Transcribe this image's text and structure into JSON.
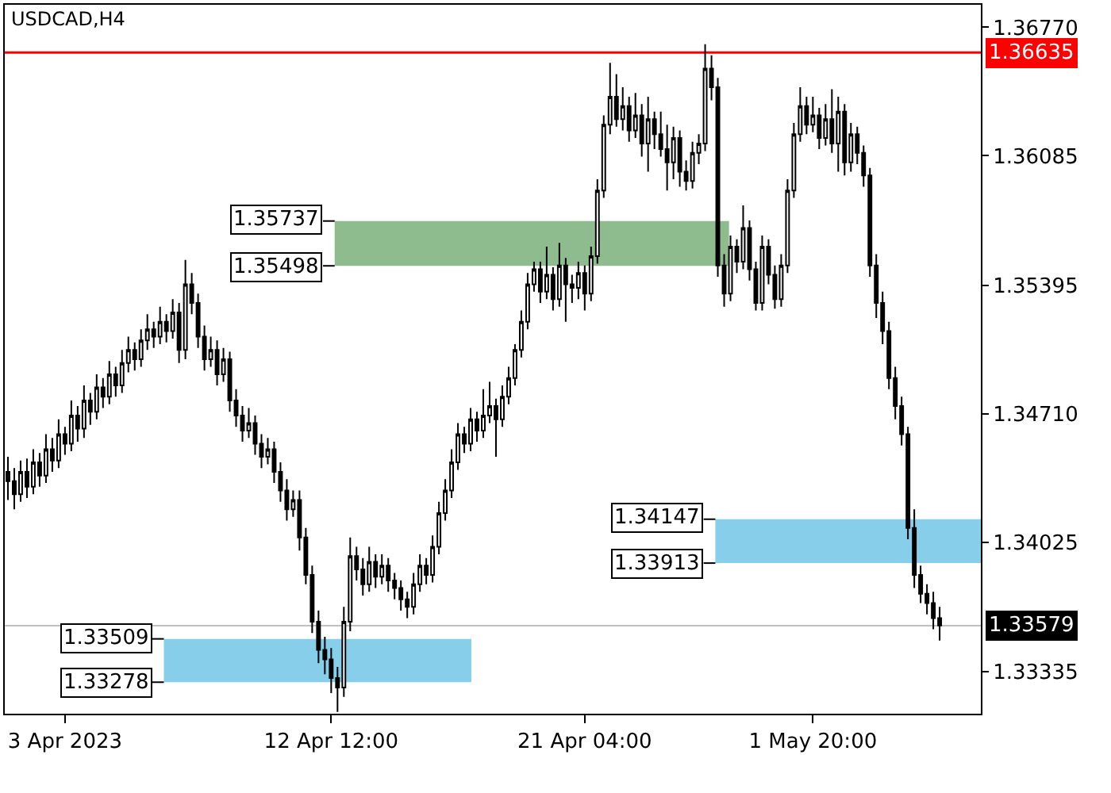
{
  "chart_data": {
    "type": "candlestick",
    "title": "USDCAD,H4",
    "color": "#000000",
    "categories": [
      null,
      null,
      null,
      null,
      null,
      null,
      null,
      null,
      null,
      "3 Apr 2023",
      null,
      null,
      null,
      null,
      null,
      null,
      null,
      null,
      null,
      null,
      null,
      null,
      null,
      null,
      null,
      null,
      null,
      null,
      null,
      null,
      null,
      null,
      null,
      null,
      null,
      null,
      null,
      null,
      null,
      null,
      null,
      null,
      null,
      null,
      null,
      null,
      null,
      null,
      null,
      null,
      null,
      "12 Apr 12:00",
      null,
      null,
      null,
      null,
      null,
      null,
      null,
      null,
      null,
      null,
      null,
      null,
      null,
      null,
      null,
      null,
      null,
      null,
      null,
      null,
      null,
      null,
      null,
      null,
      null,
      null,
      null,
      null,
      null,
      null,
      null,
      null,
      null,
      null,
      null,
      null,
      null,
      null,
      null,
      "21 Apr 04:00",
      null,
      null,
      null,
      null,
      null,
      null,
      null,
      null,
      null,
      null,
      null,
      null,
      null,
      null,
      null,
      null,
      null,
      null,
      null,
      null,
      null,
      null,
      null,
      null,
      null,
      null,
      null,
      null,
      null,
      null,
      null,
      null,
      null,
      null,
      null,
      "1 May 20:00",
      null,
      null,
      null,
      null,
      null,
      null,
      null,
      null,
      null,
      null,
      null,
      null,
      null,
      null,
      null,
      null,
      null,
      null,
      null,
      null
    ],
    "annotations": [
      "1.33509",
      "1.33278",
      "1.35737",
      "1.35498",
      "1.34147",
      "1.33913"
    ],
    "ohlc": [
      [
        1.344,
        1.3448,
        1.3425,
        1.3435
      ],
      [
        1.3435,
        1.3442,
        1.342,
        1.3428
      ],
      [
        1.3428,
        1.3446,
        1.3424,
        1.344
      ],
      [
        1.344,
        1.3447,
        1.3426,
        1.3432
      ],
      [
        1.3432,
        1.3452,
        1.3428,
        1.3445
      ],
      [
        1.3445,
        1.345,
        1.3432,
        1.3438
      ],
      [
        1.3438,
        1.346,
        1.3434,
        1.3452
      ],
      [
        1.3452,
        1.3458,
        1.344,
        1.3446
      ],
      [
        1.3446,
        1.3468,
        1.3442,
        1.346
      ],
      [
        1.346,
        1.3464,
        1.3449,
        1.3455
      ],
      [
        1.3455,
        1.3478,
        1.3451,
        1.347
      ],
      [
        1.347,
        1.3475,
        1.3456,
        1.3463
      ],
      [
        1.3463,
        1.3486,
        1.3458,
        1.3478
      ],
      [
        1.3478,
        1.3482,
        1.3465,
        1.3472
      ],
      [
        1.3472,
        1.3492,
        1.3468,
        1.3485
      ],
      [
        1.3485,
        1.349,
        1.3474,
        1.348
      ],
      [
        1.348,
        1.3499,
        1.3476,
        1.3492
      ],
      [
        1.3492,
        1.3496,
        1.348,
        1.3486
      ],
      [
        1.3486,
        1.3505,
        1.3482,
        1.3498
      ],
      [
        1.3498,
        1.3512,
        1.3493,
        1.3505
      ],
      [
        1.3505,
        1.3509,
        1.3494,
        1.35
      ],
      [
        1.35,
        1.3516,
        1.3496,
        1.351
      ],
      [
        1.351,
        1.3524,
        1.3505,
        1.3516
      ],
      [
        1.3516,
        1.352,
        1.3506,
        1.3512
      ],
      [
        1.3512,
        1.3528,
        1.3508,
        1.352
      ],
      [
        1.352,
        1.3524,
        1.3509,
        1.3515
      ],
      [
        1.3515,
        1.3532,
        1.3511,
        1.3525
      ],
      [
        1.3525,
        1.353,
        1.3498,
        1.3505
      ],
      [
        1.3505,
        1.3553,
        1.35,
        1.354
      ],
      [
        1.354,
        1.3546,
        1.3524,
        1.353
      ],
      [
        1.353,
        1.3535,
        1.3506,
        1.3512
      ],
      [
        1.3512,
        1.3518,
        1.3494,
        1.35
      ],
      [
        1.35,
        1.3512,
        1.3496,
        1.3505
      ],
      [
        1.3505,
        1.351,
        1.3486,
        1.3492
      ],
      [
        1.3492,
        1.3506,
        1.3488,
        1.35
      ],
      [
        1.35,
        1.3504,
        1.3472,
        1.3478
      ],
      [
        1.3478,
        1.3484,
        1.3464,
        1.347
      ],
      [
        1.347,
        1.3475,
        1.3456,
        1.3462
      ],
      [
        1.3462,
        1.3474,
        1.3458,
        1.3466
      ],
      [
        1.3466,
        1.347,
        1.3449,
        1.3455
      ],
      [
        1.3455,
        1.346,
        1.3442,
        1.3448
      ],
      [
        1.3448,
        1.3458,
        1.3444,
        1.3452
      ],
      [
        1.3452,
        1.3456,
        1.3434,
        1.344
      ],
      [
        1.344,
        1.3445,
        1.3424,
        1.343
      ],
      [
        1.343,
        1.3436,
        1.3414,
        1.342
      ],
      [
        1.342,
        1.343,
        1.3416,
        1.3425
      ],
      [
        1.3425,
        1.343,
        1.3398,
        1.3405
      ],
      [
        1.3405,
        1.341,
        1.338,
        1.3385
      ],
      [
        1.3385,
        1.339,
        1.3354,
        1.336
      ],
      [
        1.336,
        1.3366,
        1.3338,
        1.3345
      ],
      [
        1.3345,
        1.3352,
        1.3332,
        1.334
      ],
      [
        1.334,
        1.3346,
        1.3322,
        1.333
      ],
      [
        1.333,
        1.3336,
        1.3312,
        1.3325
      ],
      [
        1.3325,
        1.3368,
        1.332,
        1.336
      ],
      [
        1.336,
        1.3405,
        1.3355,
        1.3395
      ],
      [
        1.3395,
        1.34,
        1.3382,
        1.3388
      ],
      [
        1.3388,
        1.3394,
        1.3374,
        1.338
      ],
      [
        1.338,
        1.34,
        1.3376,
        1.3392
      ],
      [
        1.3392,
        1.3396,
        1.3378,
        1.3384
      ],
      [
        1.3384,
        1.3396,
        1.338,
        1.339
      ],
      [
        1.339,
        1.3394,
        1.3376,
        1.3382
      ],
      [
        1.3382,
        1.3386,
        1.3372,
        1.3378
      ],
      [
        1.3378,
        1.3382,
        1.3366,
        1.3372
      ],
      [
        1.3372,
        1.3376,
        1.3362,
        1.3368
      ],
      [
        1.3368,
        1.3386,
        1.3364,
        1.338
      ],
      [
        1.338,
        1.3396,
        1.3376,
        1.339
      ],
      [
        1.339,
        1.3394,
        1.338,
        1.3385
      ],
      [
        1.3385,
        1.3406,
        1.3381,
        1.34
      ],
      [
        1.34,
        1.3424,
        1.3396,
        1.3418
      ],
      [
        1.3418,
        1.3436,
        1.3414,
        1.343
      ],
      [
        1.343,
        1.3452,
        1.3426,
        1.3445
      ],
      [
        1.3445,
        1.3466,
        1.3441,
        1.346
      ],
      [
        1.346,
        1.3464,
        1.345,
        1.3455
      ],
      [
        1.3455,
        1.3474,
        1.3451,
        1.3468
      ],
      [
        1.3468,
        1.3472,
        1.3456,
        1.3462
      ],
      [
        1.3462,
        1.3484,
        1.3458,
        1.347
      ],
      [
        1.347,
        1.3488,
        1.3466,
        1.3475
      ],
      [
        1.3475,
        1.3479,
        1.3448,
        1.3468
      ],
      [
        1.3468,
        1.3486,
        1.3464,
        1.348
      ],
      [
        1.348,
        1.3496,
        1.3476,
        1.349
      ],
      [
        1.349,
        1.3508,
        1.3486,
        1.3505
      ],
      [
        1.3505,
        1.3526,
        1.3501,
        1.352
      ],
      [
        1.352,
        1.3546,
        1.3516,
        1.354
      ],
      [
        1.354,
        1.3552,
        1.3536,
        1.3548
      ],
      [
        1.3548,
        1.3552,
        1.353,
        1.3536
      ],
      [
        1.3536,
        1.356,
        1.3532,
        1.3545
      ],
      [
        1.3545,
        1.3549,
        1.3526,
        1.3532
      ],
      [
        1.3532,
        1.3562,
        1.3528,
        1.355
      ],
      [
        1.355,
        1.3554,
        1.352,
        1.354
      ],
      [
        1.354,
        1.3545,
        1.353,
        1.3538
      ],
      [
        1.3538,
        1.3552,
        1.3532,
        1.3546
      ],
      [
        1.3546,
        1.355,
        1.3526,
        1.3535
      ],
      [
        1.3535,
        1.356,
        1.3531,
        1.3555
      ],
      [
        1.3555,
        1.3596,
        1.3551,
        1.359
      ],
      [
        1.359,
        1.363,
        1.3586,
        1.3625
      ],
      [
        1.3625,
        1.3658,
        1.362,
        1.364
      ],
      [
        1.364,
        1.3652,
        1.3624,
        1.3628
      ],
      [
        1.3628,
        1.3645,
        1.3622,
        1.3635
      ],
      [
        1.3635,
        1.364,
        1.3616,
        1.3622
      ],
      [
        1.3622,
        1.3642,
        1.3618,
        1.363
      ],
      [
        1.363,
        1.3636,
        1.3608,
        1.3615
      ],
      [
        1.3615,
        1.364,
        1.36,
        1.3628
      ],
      [
        1.3628,
        1.3632,
        1.3612,
        1.362
      ],
      [
        1.362,
        1.3632,
        1.3608,
        1.3612
      ],
      [
        1.3612,
        1.3625,
        1.359,
        1.3605
      ],
      [
        1.3605,
        1.3624,
        1.3596,
        1.3618
      ],
      [
        1.3618,
        1.3622,
        1.3592,
        1.36
      ],
      [
        1.36,
        1.3606,
        1.359,
        1.3595
      ],
      [
        1.3595,
        1.3616,
        1.3591,
        1.361
      ],
      [
        1.361,
        1.362,
        1.3604,
        1.3615
      ],
      [
        1.3615,
        1.3668,
        1.3611,
        1.3655
      ],
      [
        1.3655,
        1.3662,
        1.3638,
        1.3645
      ],
      [
        1.3645,
        1.365,
        1.3544,
        1.355
      ],
      [
        1.355,
        1.3556,
        1.3528,
        1.3535
      ],
      [
        1.3535,
        1.3566,
        1.3531,
        1.356
      ],
      [
        1.356,
        1.3564,
        1.3546,
        1.3552
      ],
      [
        1.3552,
        1.3582,
        1.3548,
        1.357
      ],
      [
        1.357,
        1.3574,
        1.3542,
        1.3548
      ],
      [
        1.3548,
        1.3552,
        1.3526,
        1.353
      ],
      [
        1.353,
        1.3566,
        1.3526,
        1.356
      ],
      [
        1.356,
        1.3564,
        1.354,
        1.3545
      ],
      [
        1.3545,
        1.355,
        1.3527,
        1.3532
      ],
      [
        1.3532,
        1.3556,
        1.3528,
        1.355
      ],
      [
        1.355,
        1.3596,
        1.3546,
        1.359
      ],
      [
        1.359,
        1.3626,
        1.3586,
        1.362
      ],
      [
        1.362,
        1.3645,
        1.3616,
        1.3635
      ],
      [
        1.3635,
        1.364,
        1.362,
        1.3625
      ],
      [
        1.3625,
        1.364,
        1.3621,
        1.363
      ],
      [
        1.363,
        1.3634,
        1.3612,
        1.3618
      ],
      [
        1.3618,
        1.3636,
        1.3614,
        1.3628
      ],
      [
        1.3628,
        1.3644,
        1.361,
        1.3615
      ],
      [
        1.3615,
        1.364,
        1.36,
        1.3632
      ],
      [
        1.3632,
        1.3636,
        1.3598,
        1.3605
      ],
      [
        1.3605,
        1.3626,
        1.36,
        1.362
      ],
      [
        1.362,
        1.3624,
        1.3604,
        1.361
      ],
      [
        1.361,
        1.3614,
        1.3592,
        1.3598
      ],
      [
        1.3598,
        1.3602,
        1.3544,
        1.355
      ],
      [
        1.355,
        1.3556,
        1.3522,
        1.353
      ],
      [
        1.353,
        1.3536,
        1.3508,
        1.3515
      ],
      [
        1.3515,
        1.352,
        1.3484,
        1.349
      ],
      [
        1.349,
        1.3496,
        1.3468,
        1.3475
      ],
      [
        1.3475,
        1.348,
        1.3454,
        1.346
      ],
      [
        1.346,
        1.3464,
        1.3404,
        1.341
      ],
      [
        1.341,
        1.342,
        1.3378,
        1.3385
      ],
      [
        1.3385,
        1.339,
        1.337,
        1.3375
      ],
      [
        1.3375,
        1.338,
        1.3364,
        1.337
      ],
      [
        1.337,
        1.3376,
        1.3356,
        1.3362
      ],
      [
        1.3362,
        1.3368,
        1.335,
        1.3358
      ]
    ],
    "ylim": [
      1.3311,
      1.3689
    ],
    "yticks": [
      {
        "value": 1.3677,
        "label": "1.36770"
      },
      {
        "value": 1.36085,
        "label": "1.36085"
      },
      {
        "value": 1.35395,
        "label": "1.35395"
      },
      {
        "value": 1.3471,
        "label": "1.34710"
      },
      {
        "value": 1.34025,
        "label": "1.34025"
      },
      {
        "value": 1.33335,
        "label": "1.33335"
      }
    ],
    "grid": false,
    "ref_lines": [
      {
        "axis": "y",
        "value": 1.36635,
        "label": "1.36635",
        "color": "#ff0000"
      },
      {
        "axis": "y",
        "value": 1.33579,
        "label": "1.33579",
        "color": "#c0c0c0"
      }
    ],
    "bands": [
      {
        "axis": "y",
        "from": 1.33278,
        "to": 1.33509,
        "color": "#87ceeb"
      },
      {
        "axis": "y",
        "from": 1.35498,
        "to": 1.35737,
        "color": "#8fbc8f"
      },
      {
        "axis": "y",
        "from": 1.33913,
        "to": 1.34147,
        "color": "#87ceeb"
      }
    ]
  }
}
